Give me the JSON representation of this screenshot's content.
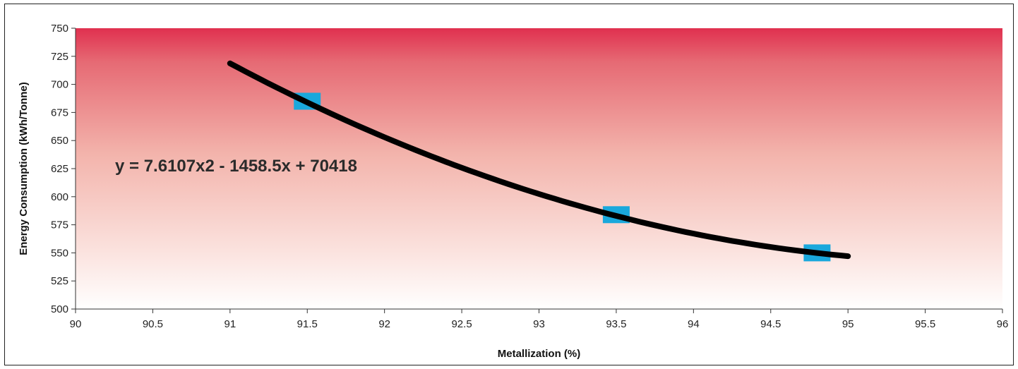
{
  "chart_data": {
    "type": "scatter",
    "xlabel": "Metallization (%)",
    "ylabel": "Energy Consumption (kWh/Tonne)",
    "xlim": [
      90,
      96
    ],
    "ylim": [
      500,
      750
    ],
    "x_ticks": [
      "90",
      "90.5",
      "91",
      "91.5",
      "92",
      "92.5",
      "93",
      "93.5",
      "94",
      "94.5",
      "95",
      "95.5",
      "96"
    ],
    "y_ticks": [
      "500",
      "525",
      "550",
      "575",
      "600",
      "625",
      "650",
      "675",
      "700",
      "725",
      "750"
    ],
    "grid": false,
    "annotation": "y = 7.6107x2 - 1458.5x + 70418",
    "series": [
      {
        "points": [
          {
            "x": 91.5,
            "y": 685
          },
          {
            "x": 93.5,
            "y": 584
          },
          {
            "x": 94.8,
            "y": 550
          }
        ]
      }
    ],
    "trendline": {
      "type": "polynomial",
      "order": 2,
      "coefficients": [
        7.6107,
        -1458.5,
        70418
      ],
      "x_range": [
        91,
        95
      ]
    },
    "colors": {
      "marker": "#1aa8dc",
      "trendline": "#000000",
      "background_top": "#e0304f",
      "background_bottom": "#ffffff"
    }
  }
}
